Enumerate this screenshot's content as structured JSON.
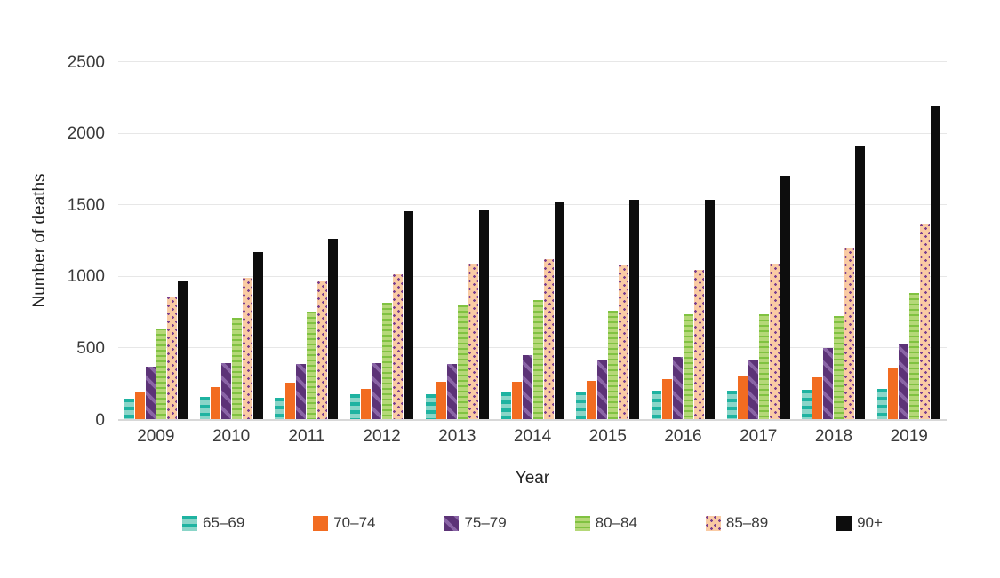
{
  "chart_data": {
    "type": "bar",
    "title": "",
    "xlabel": "Year",
    "ylabel": "Number of deaths",
    "ylim": [
      0,
      2500
    ],
    "yticks": [
      0,
      500,
      1000,
      1500,
      2000,
      2500
    ],
    "grid": "horizontal",
    "legend_position": "bottom",
    "categories": [
      "2009",
      "2010",
      "2011",
      "2012",
      "2013",
      "2014",
      "2015",
      "2016",
      "2017",
      "2018",
      "2019"
    ],
    "series": [
      {
        "name": "65–69",
        "pattern": "teal-horizontal-bands",
        "values": [
          150,
          160,
          155,
          180,
          180,
          195,
          200,
          205,
          205,
          210,
          220
        ]
      },
      {
        "name": "70–74",
        "pattern": "solid-orange",
        "values": [
          190,
          230,
          260,
          215,
          265,
          265,
          275,
          285,
          305,
          295,
          365
        ]
      },
      {
        "name": "75–79",
        "pattern": "purple-diagonal-stripes",
        "values": [
          375,
          400,
          390,
          395,
          390,
          450,
          415,
          440,
          425,
          500,
          535
        ]
      },
      {
        "name": "80–84",
        "pattern": "green-horizontal-stripes",
        "values": [
          640,
          715,
          760,
          820,
          800,
          840,
          765,
          740,
          740,
          725,
          890
        ]
      },
      {
        "name": "85–89",
        "pattern": "peach-purple-dots",
        "values": [
          860,
          990,
          970,
          1015,
          1090,
          1125,
          1085,
          1050,
          1095,
          1205,
          1370
        ]
      },
      {
        "name": "90+",
        "pattern": "solid-black",
        "values": [
          965,
          1170,
          1265,
          1455,
          1470,
          1525,
          1540,
          1540,
          1705,
          1920,
          2195
        ]
      }
    ],
    "colors": {
      "teal-dark": "#1fb3a1",
      "teal-light": "#8ad5c8",
      "orange": "#f26c21",
      "purple-dark": "#5c3377",
      "purple-light": "#8a65a6",
      "green-light": "#b5d878",
      "green-dark": "#80c241",
      "peach": "#facba4",
      "dot-purple": "#7b3f8f",
      "bar-black": "#0d0d0d"
    }
  }
}
